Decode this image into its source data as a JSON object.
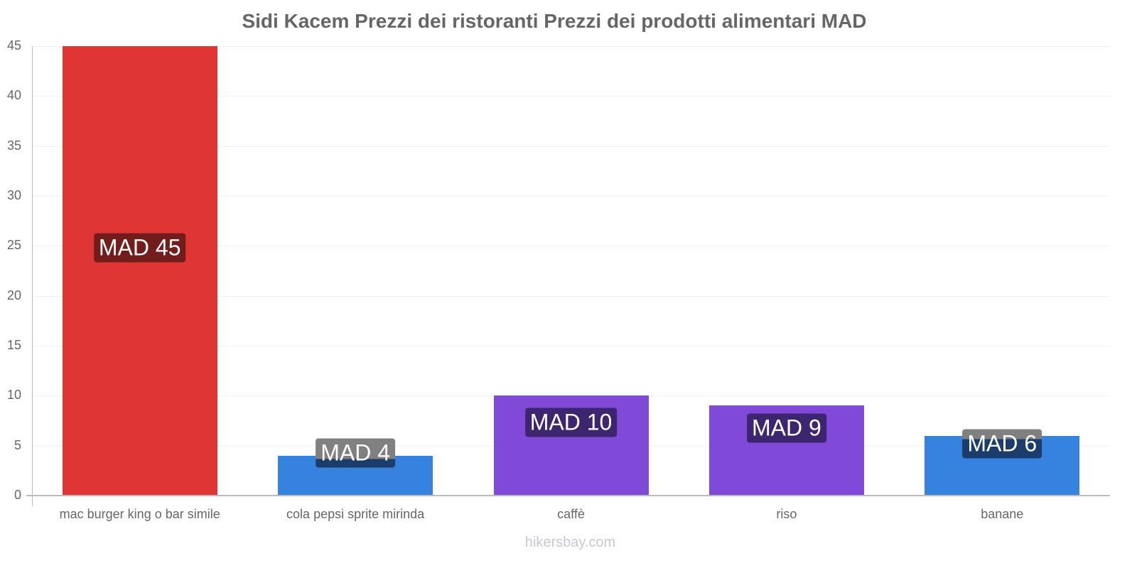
{
  "title": "Sidi Kacem Prezzi dei ristoranti Prezzi dei prodotti alimentari MAD",
  "watermark": "hikersbay.com",
  "y_ticks": [
    "0",
    "5",
    "10",
    "15",
    "20",
    "25",
    "30",
    "35",
    "40",
    "45"
  ],
  "bars": [
    {
      "category": "mac burger king o bar simile",
      "value": 45,
      "label": "MAD 45",
      "color": "#e03535",
      "label_bg": "#731c1c"
    },
    {
      "category": "cola pepsi sprite mirinda",
      "value": 4,
      "label": "MAD 4",
      "color": "#3583de",
      "label_bg": "#1b3d6b"
    },
    {
      "category": "caffè",
      "value": 10,
      "label": "MAD 10",
      "color": "#8049d8",
      "label_bg": "#3e2570"
    },
    {
      "category": "riso",
      "value": 9,
      "label": "MAD 9",
      "color": "#8049d8",
      "label_bg": "#3e2570"
    },
    {
      "category": "banane",
      "value": 6,
      "label": "MAD 6",
      "color": "#3583de",
      "label_bg": "#1b3d6b"
    }
  ],
  "chart_data": {
    "type": "bar",
    "title": "Sidi Kacem Prezzi dei ristoranti Prezzi dei prodotti alimentari MAD",
    "categories": [
      "mac burger king o bar simile",
      "cola pepsi sprite mirinda",
      "caffè",
      "riso",
      "banane"
    ],
    "values": [
      45,
      4,
      10,
      9,
      6
    ],
    "data_labels": [
      "MAD 45",
      "MAD 4",
      "MAD 10",
      "MAD 9",
      "MAD 6"
    ],
    "xlabel": "",
    "ylabel": "",
    "ylim": [
      0,
      45
    ],
    "yticks": [
      0,
      5,
      10,
      15,
      20,
      25,
      30,
      35,
      40,
      45
    ],
    "grid": true,
    "legend": "none",
    "colors": [
      "#e03535",
      "#3583de",
      "#8049d8",
      "#8049d8",
      "#3583de"
    ]
  }
}
